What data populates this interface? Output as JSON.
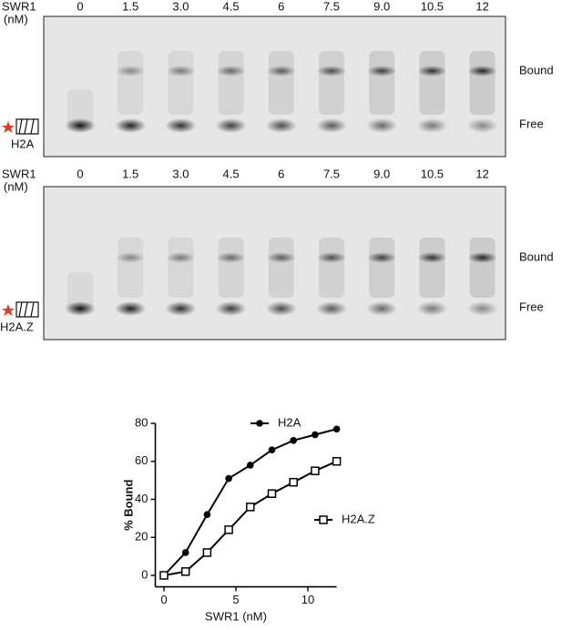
{
  "gels": [
    {
      "header": [
        "SWR1",
        "(nM)"
      ],
      "lanes": [
        "0",
        "1.5",
        "3.0",
        "4.5",
        "6",
        "7.5",
        "9.0",
        "10.5",
        "12"
      ],
      "bound": "Bound",
      "free": "Free",
      "substrate": "H2A"
    },
    {
      "header": [
        "SWR1",
        "(nM)"
      ],
      "lanes": [
        "0",
        "1.5",
        "3.0",
        "4.5",
        "6",
        "7.5",
        "9.0",
        "10.5",
        "12"
      ],
      "bound": "Bound",
      "free": "Free",
      "substrate": "H2A.Z"
    }
  ],
  "chart_data": {
    "type": "line",
    "ylabel": "% Bound",
    "xlabel": "SWR1 (nM)",
    "x": [
      0,
      1.5,
      3,
      4.5,
      6,
      7.5,
      9,
      10.5,
      12
    ],
    "series": [
      {
        "name": "H2A",
        "color": "#000000",
        "marker": "filled-circle",
        "values": [
          0,
          12,
          32,
          51,
          58,
          66,
          71,
          74,
          77
        ]
      },
      {
        "name": "H2A.Z",
        "color": "#000000",
        "marker": "open-square",
        "values": [
          0,
          2,
          12,
          24,
          36,
          43,
          49,
          55,
          60
        ]
      }
    ],
    "xlim": [
      -0.6,
      12
    ],
    "ylim": [
      -6,
      80
    ],
    "xticks": [
      0,
      5,
      10
    ],
    "yticks": [
      0,
      20,
      40,
      60,
      80
    ]
  }
}
